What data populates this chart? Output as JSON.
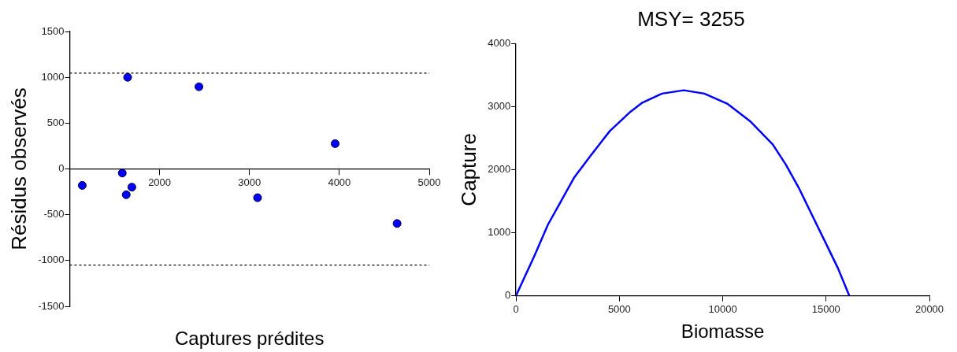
{
  "chart_data": [
    {
      "type": "scatter",
      "xlabel": "Captures prédites",
      "ylabel": "Résidus observés",
      "x": [
        1140,
        1585,
        1629,
        1645,
        1692,
        2438,
        3090,
        3953,
        4642
      ],
      "values": [
        -180,
        -45,
        -282,
        1000,
        -199,
        897,
        -314,
        276,
        -596
      ],
      "color": "#0000ff",
      "marker": "circle",
      "xlim": [
        1000,
        5000
      ],
      "xticks": [
        2000,
        3000,
        4000,
        5000
      ],
      "ylim": [
        -1500,
        1500
      ],
      "yticks": [
        -1500,
        -1000,
        -500,
        0,
        500,
        1000,
        1500
      ],
      "ref_lines": [
        {
          "axis": "y",
          "value": 1045,
          "color": "#000000",
          "line_style": "dotted"
        },
        {
          "axis": "y",
          "value": -1050,
          "color": "#000000",
          "line_style": "dotted"
        }
      ],
      "grid": false,
      "legend": false
    },
    {
      "type": "line",
      "title": "MSY= 3255",
      "xlabel": "Biomasse",
      "ylabel": "Capture",
      "x": [
        0,
        914,
        1545,
        2175,
        2805,
        3593,
        4539,
        5485,
        6115,
        7061,
        8117,
        9110,
        10213,
        11316,
        12419,
        13050,
        13680,
        14310,
        14941,
        15571,
        16123
      ],
      "values": [
        0,
        651,
        1128,
        1499,
        1870,
        2215,
        2612,
        2903,
        3062,
        3205,
        3258,
        3205,
        3046,
        2770,
        2400,
        2082,
        1711,
        1287,
        864,
        440,
        0
      ],
      "color": "#0000ff",
      "marker": "none",
      "xlim": [
        0,
        20000
      ],
      "xticks": [
        0,
        5000,
        10000,
        15000,
        20000
      ],
      "ylim": [
        0,
        4000
      ],
      "yticks": [
        0,
        1000,
        2000,
        3000,
        4000
      ],
      "grid": false,
      "legend": false
    }
  ]
}
